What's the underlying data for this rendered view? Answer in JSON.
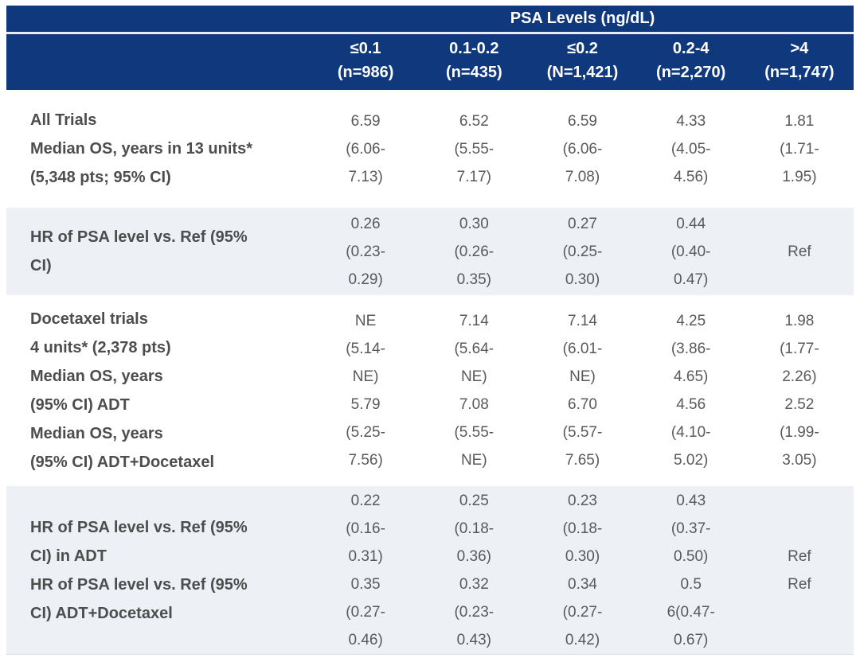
{
  "colors": {
    "header_navy": "#10387c",
    "header_text": "#ffffff",
    "row_shade": "#edf0f5",
    "label_text": "#4d4d4d",
    "value_text": "#595959",
    "header_divider": "#e6eaf2"
  },
  "table": {
    "header": {
      "group_title": "PSA Levels (ng/dL)",
      "columns": [
        {
          "range": "≤0.1",
          "n": "(n=986)"
        },
        {
          "range": "0.1-0.2",
          "n": "(n=435)"
        },
        {
          "range": "≤0.2",
          "n": "(N=1,421)"
        },
        {
          "range": "0.2-4",
          "n": "(n=2,270)"
        },
        {
          "range": ">4",
          "n": "(n=1,747)"
        }
      ]
    },
    "rows": [
      {
        "label": "All Trials\nMedian OS, years in 13 units*\n(5,348 pts; 95% CI)",
        "shaded": false,
        "values": [
          "6.59\n(6.06-\n7.13)",
          "6.52\n(5.55-\n7.17)",
          "6.59\n(6.06-\n7.08)",
          "4.33\n(4.05-\n4.56)",
          "1.81\n(1.71-\n1.95)"
        ]
      },
      {
        "label": "HR of PSA level vs. Ref (95%\nCI)",
        "shaded": true,
        "values": [
          "0.26\n(0.23-\n0.29)",
          "0.30\n(0.26-\n0.35)",
          "0.27\n(0.25-\n0.30)",
          "0.44\n(0.40-\n0.47)",
          "Ref"
        ]
      },
      {
        "label": "Docetaxel trials\n4 units* (2,378 pts)\nMedian OS, years\n(95% CI) ADT\nMedian OS, years\n(95% CI) ADT+Docetaxel",
        "shaded": false,
        "values": [
          "NE\n(5.14-\nNE)\n5.79\n(5.25-\n7.56)",
          "7.14\n(5.64-\nNE)\n7.08\n(5.55-\nNE)",
          "7.14\n(6.01-\nNE)\n6.70\n(5.57-\n7.65)",
          "4.25\n(3.86-\n4.65)\n4.56\n(4.10-\n5.02)",
          "1.98\n(1.77-\n2.26)\n2.52\n(1.99-\n3.05)"
        ]
      },
      {
        "label": "HR of PSA level vs. Ref (95%\nCI) in ADT\nHR of PSA level vs. Ref (95%\nCI) ADT+Docetaxel",
        "shaded": true,
        "values": [
          "0.22\n(0.16-\n0.31)\n0.35\n(0.27-\n0.46)",
          "0.25\n(0.18-\n0.36)\n0.32\n(0.23-\n0.43)",
          "0.23\n(0.18-\n0.30)\n0.34\n(0.27-\n0.42)",
          "0.43\n(0.37-\n0.50)\n0.5\n6(0.47-\n0.67)",
          "Ref\nRef"
        ]
      }
    ]
  }
}
